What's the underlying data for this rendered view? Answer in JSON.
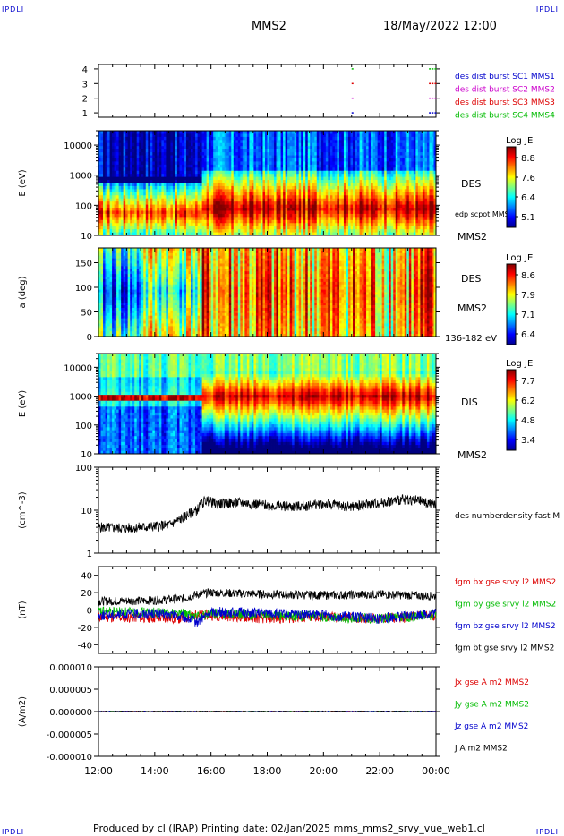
{
  "corners": {
    "top_left": "IPDLI",
    "top_right": "IPDLI",
    "bottom_left": "IPDLI",
    "bottom_right": "IPDLI"
  },
  "header": {
    "spacecraft": "MMS2",
    "datetime": "18/May/2022 12:00"
  },
  "footer": {
    "text": "Produced by cl (IRAP)   Printing date: 02/Jan/2025   mms_mms2_srvy_vue_web1.cl"
  },
  "colors": {
    "jet_min": "#00008f",
    "jet_max": "#800000",
    "blue": "#0000cc",
    "magenta": "#cc00cc",
    "red": "#dd0000",
    "green": "#00bb00",
    "black": "#000000"
  },
  "chart_data": [
    {
      "type": "scatter",
      "yticks": [
        "1",
        "2",
        "3",
        "4"
      ],
      "legend": [
        {
          "name": "des dist burst SC1 MMS1",
          "color": "#0000cc",
          "row": 1
        },
        {
          "name": "des dist burst SC2 MMS2",
          "color": "#cc00cc",
          "row": 2
        },
        {
          "name": "des dist burst SC3 MMS3",
          "color": "#dd0000",
          "row": 3
        },
        {
          "name": "des dist burst SC4 MMS4",
          "color": "#00bb00",
          "row": 4
        }
      ],
      "marks_hours": [
        21.0,
        23.75,
        23.85,
        23.95
      ],
      "ylim": [
        0.7,
        4.3
      ]
    },
    {
      "type": "heatmap",
      "ylabel": "E (eV)",
      "yticks": [
        "10",
        "100",
        "1000",
        "10000"
      ],
      "ylog": true,
      "ylim": [
        10,
        30000
      ],
      "right_labels": [
        "DES",
        "edp scpot MMS2",
        "MMS2"
      ],
      "colorbar": {
        "title": "Log JE",
        "ticks": [
          "8.8",
          "7.6",
          "6.4",
          "5.1"
        ]
      }
    },
    {
      "type": "heatmap",
      "ylabel": "a (deg)",
      "yticks": [
        "0",
        "50",
        "100",
        "150"
      ],
      "ylim": [
        0,
        180
      ],
      "right_labels": [
        "DES",
        "MMS2",
        "136-182 eV"
      ],
      "colorbar": {
        "title": "Log JE",
        "ticks": [
          "8.6",
          "7.9",
          "7.1",
          "6.4"
        ]
      }
    },
    {
      "type": "heatmap",
      "ylabel": "E (eV)",
      "yticks": [
        "10",
        "100",
        "1000",
        "10000"
      ],
      "ylog": true,
      "ylim": [
        10,
        30000
      ],
      "right_labels": [
        "DIS",
        "MMS2"
      ],
      "colorbar": {
        "title": "Log JE",
        "ticks": [
          "7.7",
          "6.2",
          "4.8",
          "3.4"
        ]
      }
    },
    {
      "type": "line",
      "ylabel": "(cm^-3)",
      "yticks": [
        "1",
        "10",
        "100"
      ],
      "ylog": true,
      "ylim": [
        1,
        100
      ],
      "series": [
        {
          "name": "des numberdensity fast M",
          "color": "#000000",
          "x": [
            12,
            13,
            14,
            14.5,
            14.9,
            15.2,
            15.5,
            15.8,
            16.2,
            17,
            18,
            19,
            20,
            21,
            22,
            23,
            23.5,
            24
          ],
          "y": [
            4,
            3.8,
            4.2,
            4.5,
            6,
            8,
            10,
            17,
            14,
            15,
            13,
            12,
            14,
            12,
            15,
            18,
            16,
            13
          ]
        }
      ]
    },
    {
      "type": "line",
      "ylabel": "(nT)",
      "yticks": [
        "-40",
        "-20",
        "0",
        "20",
        "40"
      ],
      "ylim": [
        -50,
        50
      ],
      "series": [
        {
          "name": "fgm bx gse srvy l2 MMS2",
          "color": "#dd0000",
          "x": [
            12,
            14,
            15,
            15.5,
            16,
            18,
            20,
            22,
            24
          ],
          "y": [
            -8,
            -9,
            -10,
            -5,
            -6,
            -10,
            -8,
            -10,
            -6
          ]
        },
        {
          "name": "fgm by gse srvy l2 MMS2",
          "color": "#00bb00",
          "x": [
            12,
            14,
            15,
            15.5,
            16,
            18,
            20,
            22,
            24
          ],
          "y": [
            -2,
            -3,
            -4,
            -8,
            -4,
            -6,
            -8,
            -10,
            -6
          ]
        },
        {
          "name": "fgm bz gse srvy l2 MMS2",
          "color": "#0000cc",
          "x": [
            12,
            14,
            15,
            15.5,
            16,
            18,
            20,
            22,
            24
          ],
          "y": [
            -6,
            -4,
            -8,
            -14,
            -2,
            -4,
            -6,
            -10,
            -4
          ]
        },
        {
          "name": "fgm bt gse srvy l2 MMS2",
          "color": "#000000",
          "x": [
            12,
            14,
            15,
            15.5,
            16,
            18,
            20,
            22,
            24
          ],
          "y": [
            10,
            11,
            13,
            18,
            20,
            18,
            17,
            18,
            16
          ]
        }
      ]
    },
    {
      "type": "line",
      "ylabel": "(A/m2)",
      "yticks": [
        "-0.000010",
        "-0.000005",
        "0.000000",
        "0.000005",
        "0.000010"
      ],
      "ylim": [
        -1e-05,
        1e-05
      ],
      "xticks": [
        "12:00",
        "14:00",
        "16:00",
        "18:00",
        "20:00",
        "22:00",
        "00:00"
      ],
      "xlim_hours": [
        12,
        24
      ],
      "series": [
        {
          "name": "Jx gse A m2 MMS2",
          "color": "#dd0000",
          "x": [
            12,
            24
          ],
          "y": [
            0,
            0
          ]
        },
        {
          "name": "Jy gse A m2 MMS2",
          "color": "#00bb00",
          "x": [
            12,
            24
          ],
          "y": [
            0,
            0
          ]
        },
        {
          "name": "Jz gse A m2 MMS2",
          "color": "#0000cc",
          "x": [
            12,
            24
          ],
          "y": [
            0,
            0
          ]
        },
        {
          "name": "J A m2 MMS2",
          "color": "#000000",
          "x": [
            12,
            24
          ],
          "y": [
            0,
            0
          ]
        }
      ]
    }
  ]
}
